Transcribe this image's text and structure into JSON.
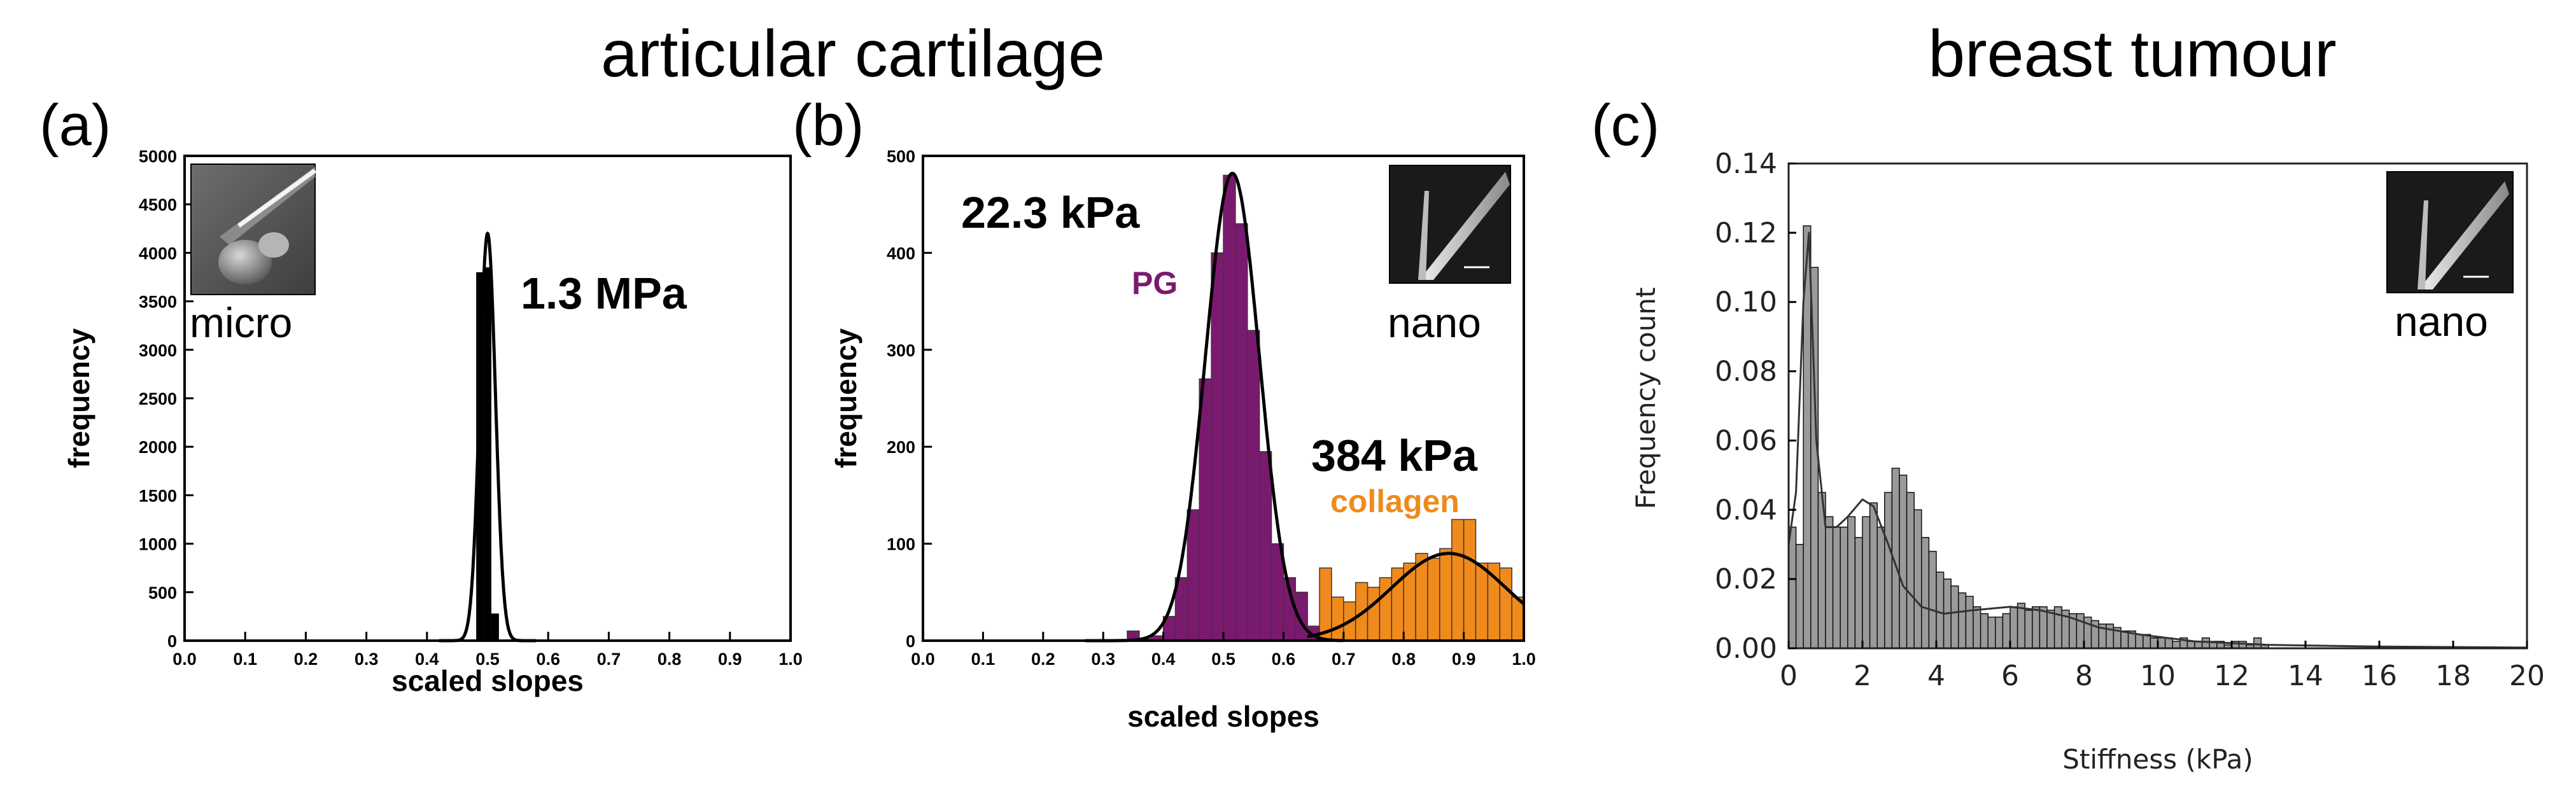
{
  "figure": {
    "group_title_left": "articular cartilage",
    "group_title_right": "breast tumour"
  },
  "colors": {
    "black": "#000000",
    "purple": "#7a1a6e",
    "orange": "#f08a1c",
    "gray_bar": "#9a9a9a"
  },
  "chart_data": [
    {
      "panel": "(a)",
      "type": "bar",
      "xlabel": "scaled slopes",
      "ylabel": "frequency",
      "xlim": [
        0.0,
        1.0
      ],
      "ylim": [
        0,
        5000
      ],
      "xticks": [
        "0.0",
        "0.1",
        "0.2",
        "0.3",
        "0.4",
        "0.5",
        "0.6",
        "0.7",
        "0.8",
        "0.9",
        "1.0"
      ],
      "yticks": [
        "0",
        "500",
        "1000",
        "1500",
        "2000",
        "2500",
        "3000",
        "3500",
        "4000",
        "4500",
        "5000"
      ],
      "bin_width": 0.0125,
      "bars": [
        {
          "x": 0.4875,
          "y": 3800
        },
        {
          "x": 0.5,
          "y": 3850
        },
        {
          "x": 0.5125,
          "y": 280
        }
      ],
      "fit": {
        "mu": 0.5,
        "sigma": 0.013,
        "amp": 4200
      },
      "annotation": "1.3 MPa",
      "inset_label": "micro"
    },
    {
      "panel": "(b)",
      "type": "bar",
      "xlabel": "scaled slopes",
      "ylabel": "frequency",
      "xlim": [
        0.0,
        1.0
      ],
      "ylim": [
        0,
        500
      ],
      "xticks": [
        "0.0",
        "0.1",
        "0.2",
        "0.3",
        "0.4",
        "0.5",
        "0.6",
        "0.7",
        "0.8",
        "0.9",
        "1.0"
      ],
      "yticks": [
        "0",
        "100",
        "200",
        "300",
        "400",
        "500"
      ],
      "bin_width": 0.02,
      "series": [
        {
          "name": "PG",
          "color": "#7a1a6e",
          "x": [
            0.35,
            0.37,
            0.39,
            0.41,
            0.43,
            0.45,
            0.47,
            0.49,
            0.51,
            0.53,
            0.55,
            0.57,
            0.59,
            0.61,
            0.63,
            0.65
          ],
          "values": [
            10,
            2,
            5,
            25,
            65,
            135,
            270,
            400,
            480,
            430,
            320,
            195,
            100,
            65,
            50,
            15
          ]
        },
        {
          "name": "collagen",
          "color": "#f08a1c",
          "x": [
            0.67,
            0.69,
            0.71,
            0.73,
            0.75,
            0.77,
            0.79,
            0.81,
            0.83,
            0.85,
            0.87,
            0.89,
            0.91,
            0.93,
            0.95,
            0.97,
            0.99
          ],
          "values": [
            75,
            45,
            40,
            60,
            55,
            65,
            75,
            80,
            90,
            85,
            95,
            125,
            125,
            80,
            80,
            75,
            45
          ]
        }
      ],
      "fits": [
        {
          "mu": 0.515,
          "sigma": 0.045,
          "amp": 482
        },
        {
          "mu": 0.875,
          "sigma": 0.095,
          "amp": 90
        }
      ],
      "annotations": [
        "22.3 kPa",
        "PG",
        "384 kPa",
        "collagen"
      ],
      "inset_label": "nano"
    },
    {
      "panel": "(c)",
      "type": "bar",
      "xlabel": "Stiffness (kPa)",
      "ylabel": "Frequency count",
      "xlim": [
        0,
        20
      ],
      "ylim": [
        0,
        0.14
      ],
      "xticks": [
        "0",
        "2",
        "4",
        "6",
        "8",
        "10",
        "12",
        "14",
        "16",
        "18",
        "20"
      ],
      "yticks": [
        "0.00",
        "0.02",
        "0.04",
        "0.06",
        "0.08",
        "0.10",
        "0.12",
        "0.14"
      ],
      "bin_width": 0.2,
      "x_start": 0.0,
      "values": [
        0.035,
        0.03,
        0.122,
        0.11,
        0.045,
        0.038,
        0.035,
        0.035,
        0.038,
        0.032,
        0.038,
        0.042,
        0.035,
        0.045,
        0.052,
        0.05,
        0.045,
        0.04,
        0.032,
        0.028,
        0.022,
        0.02,
        0.018,
        0.016,
        0.015,
        0.012,
        0.01,
        0.009,
        0.009,
        0.01,
        0.012,
        0.013,
        0.011,
        0.012,
        0.012,
        0.011,
        0.012,
        0.011,
        0.01,
        0.01,
        0.009,
        0.008,
        0.007,
        0.007,
        0.006,
        0.005,
        0.005,
        0.004,
        0.004,
        0.003,
        0.003,
        0.003,
        0.002,
        0.003,
        0.002,
        0.002,
        0.003,
        0.002,
        0.002,
        0.001,
        0.002,
        0.002,
        0.001,
        0.003,
        0.001
      ],
      "fit_points": [
        [
          0,
          0.03
        ],
        [
          0.2,
          0.045
        ],
        [
          0.4,
          0.1
        ],
        [
          0.55,
          0.12
        ],
        [
          0.75,
          0.06
        ],
        [
          1.0,
          0.035
        ],
        [
          1.3,
          0.035
        ],
        [
          1.6,
          0.038
        ],
        [
          2.0,
          0.043
        ],
        [
          2.3,
          0.041
        ],
        [
          2.7,
          0.03
        ],
        [
          3.1,
          0.018
        ],
        [
          3.6,
          0.012
        ],
        [
          4.2,
          0.01
        ],
        [
          5.0,
          0.011
        ],
        [
          6.0,
          0.012
        ],
        [
          6.8,
          0.011
        ],
        [
          7.6,
          0.009
        ],
        [
          8.4,
          0.006
        ],
        [
          9.5,
          0.004
        ],
        [
          11,
          0.002
        ],
        [
          13,
          0.001
        ],
        [
          16,
          0.0005
        ],
        [
          20,
          0.0002
        ]
      ],
      "inset_label": "nano"
    }
  ]
}
